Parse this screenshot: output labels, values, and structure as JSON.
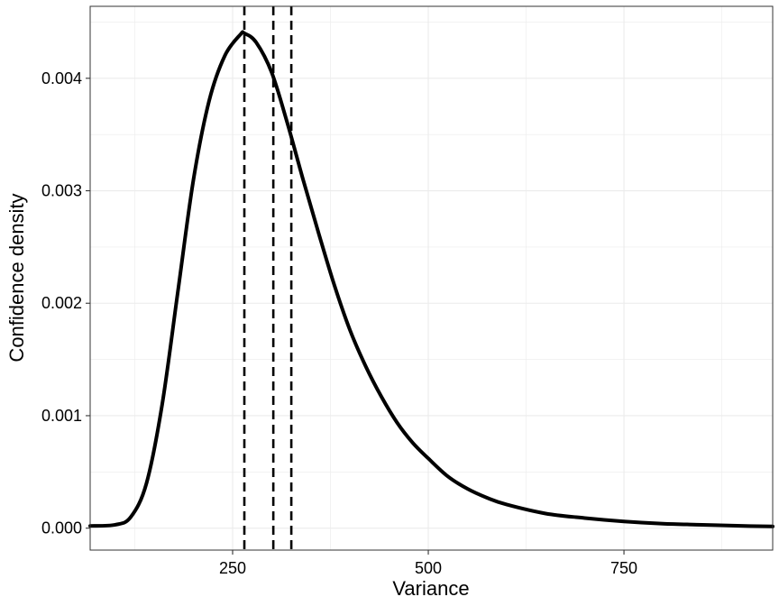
{
  "chart_data": {
    "type": "line",
    "title": "",
    "xlabel": "Variance",
    "ylabel": "Confidence density",
    "xlim": [
      68,
      940
    ],
    "ylim": [
      -0.000195,
      0.00464
    ],
    "x_ticks": [
      250,
      500,
      750
    ],
    "x_tick_labels": [
      "250",
      "500",
      "750"
    ],
    "y_ticks": [
      0,
      0.001,
      0.002,
      0.003,
      0.004
    ],
    "y_tick_labels": [
      "0.000",
      "0.001",
      "0.002",
      "0.003",
      "0.004"
    ],
    "grid": true,
    "legend": "none",
    "series": [
      {
        "color": "#000000",
        "x": [
          68,
          100,
          120,
          140,
          160,
          180,
          200,
          220,
          240,
          260,
          265,
          280,
          300,
          320,
          340,
          360,
          380,
          400,
          420,
          440,
          460,
          480,
          500,
          525,
          550,
          575,
          600,
          650,
          700,
          750,
          800,
          850,
          900,
          940
        ],
        "y": [
          2e-05,
          3e-05,
          0.0001,
          0.0004,
          0.0011,
          0.0021,
          0.0031,
          0.0038,
          0.0042,
          0.00439,
          0.0044,
          0.00432,
          0.00405,
          0.0036,
          0.0031,
          0.00262,
          0.00216,
          0.00176,
          0.00144,
          0.00117,
          0.00094,
          0.00076,
          0.00062,
          0.00046,
          0.00035,
          0.00027,
          0.00021,
          0.00013,
          9e-05,
          6e-05,
          4e-05,
          3e-05,
          2e-05,
          1.5e-05
        ]
      }
    ],
    "vlines": [
      {
        "x": 265,
        "color": "#000000",
        "style": "dashed"
      },
      {
        "x": 302,
        "color": "#000000",
        "style": "dashed"
      },
      {
        "x": 325,
        "color": "#000000",
        "style": "dashed"
      }
    ],
    "colors": {
      "background": "#ffffff",
      "grid": "#ebebeb",
      "line": "#000000",
      "frame": "#333333"
    }
  }
}
